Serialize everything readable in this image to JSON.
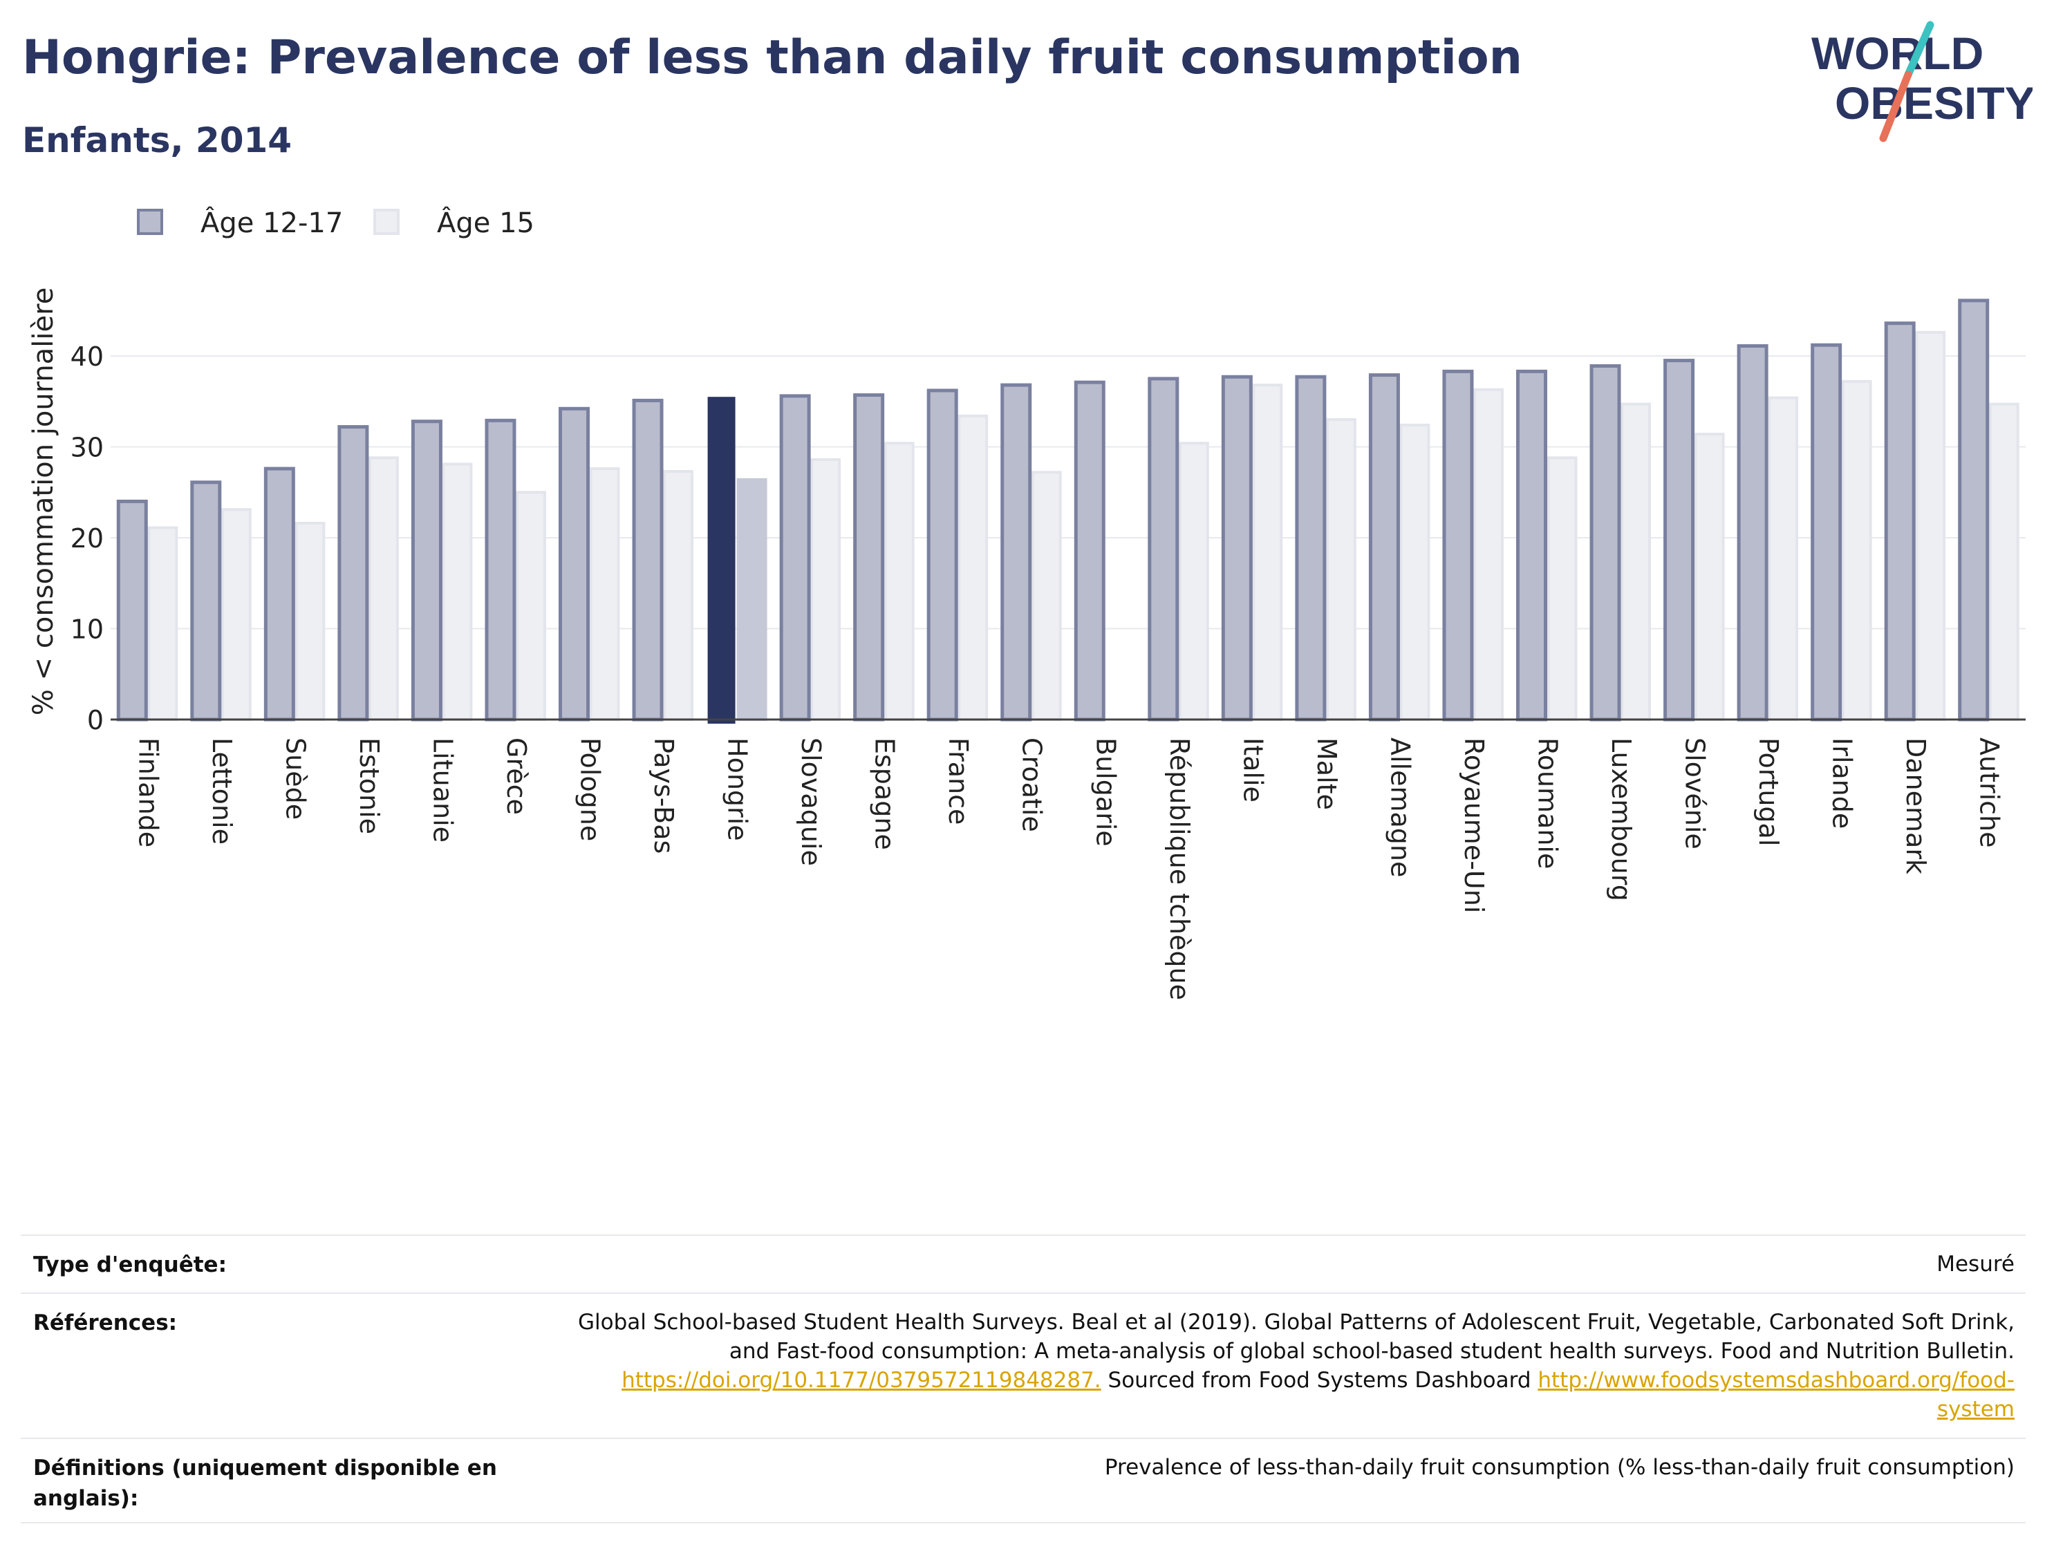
{
  "header": {
    "title": "Hongrie: Prevalence of less than daily fruit consumption",
    "subtitle": "Enfants, 2014"
  },
  "logo": {
    "line1": "WORLD",
    "line2": "OBESITY",
    "accent_color": "#e8715a",
    "accent_color_2": "#3cc2c0",
    "text_color": "#2a3561"
  },
  "chart_data": {
    "type": "bar",
    "title": "Hongrie: Prevalence of less than daily fruit consumption",
    "subtitle": "Enfants, 2014",
    "xlabel": "",
    "ylabel": "% < consommation journalière",
    "ylim": [
      0,
      50
    ],
    "yticks": [
      0,
      10,
      20,
      30,
      40
    ],
    "grid": true,
    "legend_position": "top-left",
    "highlight_category": "Hongrie",
    "categories": [
      "Finlande",
      "Lettonie",
      "Suède",
      "Estonie",
      "Lituanie",
      "Grèce",
      "Pologne",
      "Pays-Bas",
      "Hongrie",
      "Slovaquie",
      "Espagne",
      "France",
      "Croatie",
      "Bulgarie",
      "République tchèque",
      "Italie",
      "Malte",
      "Allemagne",
      "Royaume-Uni",
      "Roumanie",
      "Luxembourg",
      "Slovénie",
      "Portugal",
      "Irlande",
      "Danemark",
      "Autriche"
    ],
    "series": [
      {
        "name": "Âge 12-17",
        "color": "#b9bccc",
        "border": "#7a809f",
        "highlight_color": "#2a3561",
        "values": [
          24.0,
          26.1,
          27.6,
          32.2,
          32.8,
          32.9,
          34.2,
          35.1,
          35.5,
          35.6,
          35.7,
          36.2,
          36.8,
          37.1,
          37.5,
          37.7,
          37.7,
          37.9,
          38.3,
          38.3,
          38.9,
          39.5,
          41.1,
          41.2,
          43.6,
          46.1
        ]
      },
      {
        "name": "Âge 15",
        "color": "#eeeff3",
        "border": "#e3e5ec",
        "highlight_color": "#c5c8d6",
        "values": [
          21.1,
          23.1,
          21.6,
          28.8,
          28.1,
          25.0,
          27.6,
          27.3,
          26.4,
          28.6,
          30.4,
          33.4,
          27.2,
          null,
          30.4,
          36.8,
          33.0,
          32.4,
          36.3,
          28.8,
          34.7,
          31.4,
          35.4,
          37.2,
          42.6,
          34.7
        ]
      }
    ]
  },
  "meta": {
    "survey_label": "Type d'enquête:",
    "survey_value": "Mesuré",
    "references_label": "Références:",
    "references_line1": "Global School-based Student Health Surveys. Beal et al (2019). Global Patterns of Adolescent Fruit, Vegetable, Carbonated Soft Drink,",
    "references_line2": "and Fast-food consumption: A meta-analysis of global school-based student health surveys. Food and Nutrition Bulletin.",
    "references_link1": "https://doi.org/10.1177/0379572119848287.",
    "references_mid": " Sourced from Food Systems Dashboard ",
    "references_link2a": "http://www.foodsystemsdashboard.org/food-",
    "references_link2b": "system",
    "definitions_label_1": "Définitions (uniquement disponible en",
    "definitions_label_2": "anglais):",
    "definitions_value": "Prevalence of less-than-daily fruit consumption (% less-than-daily fruit consumption)"
  }
}
